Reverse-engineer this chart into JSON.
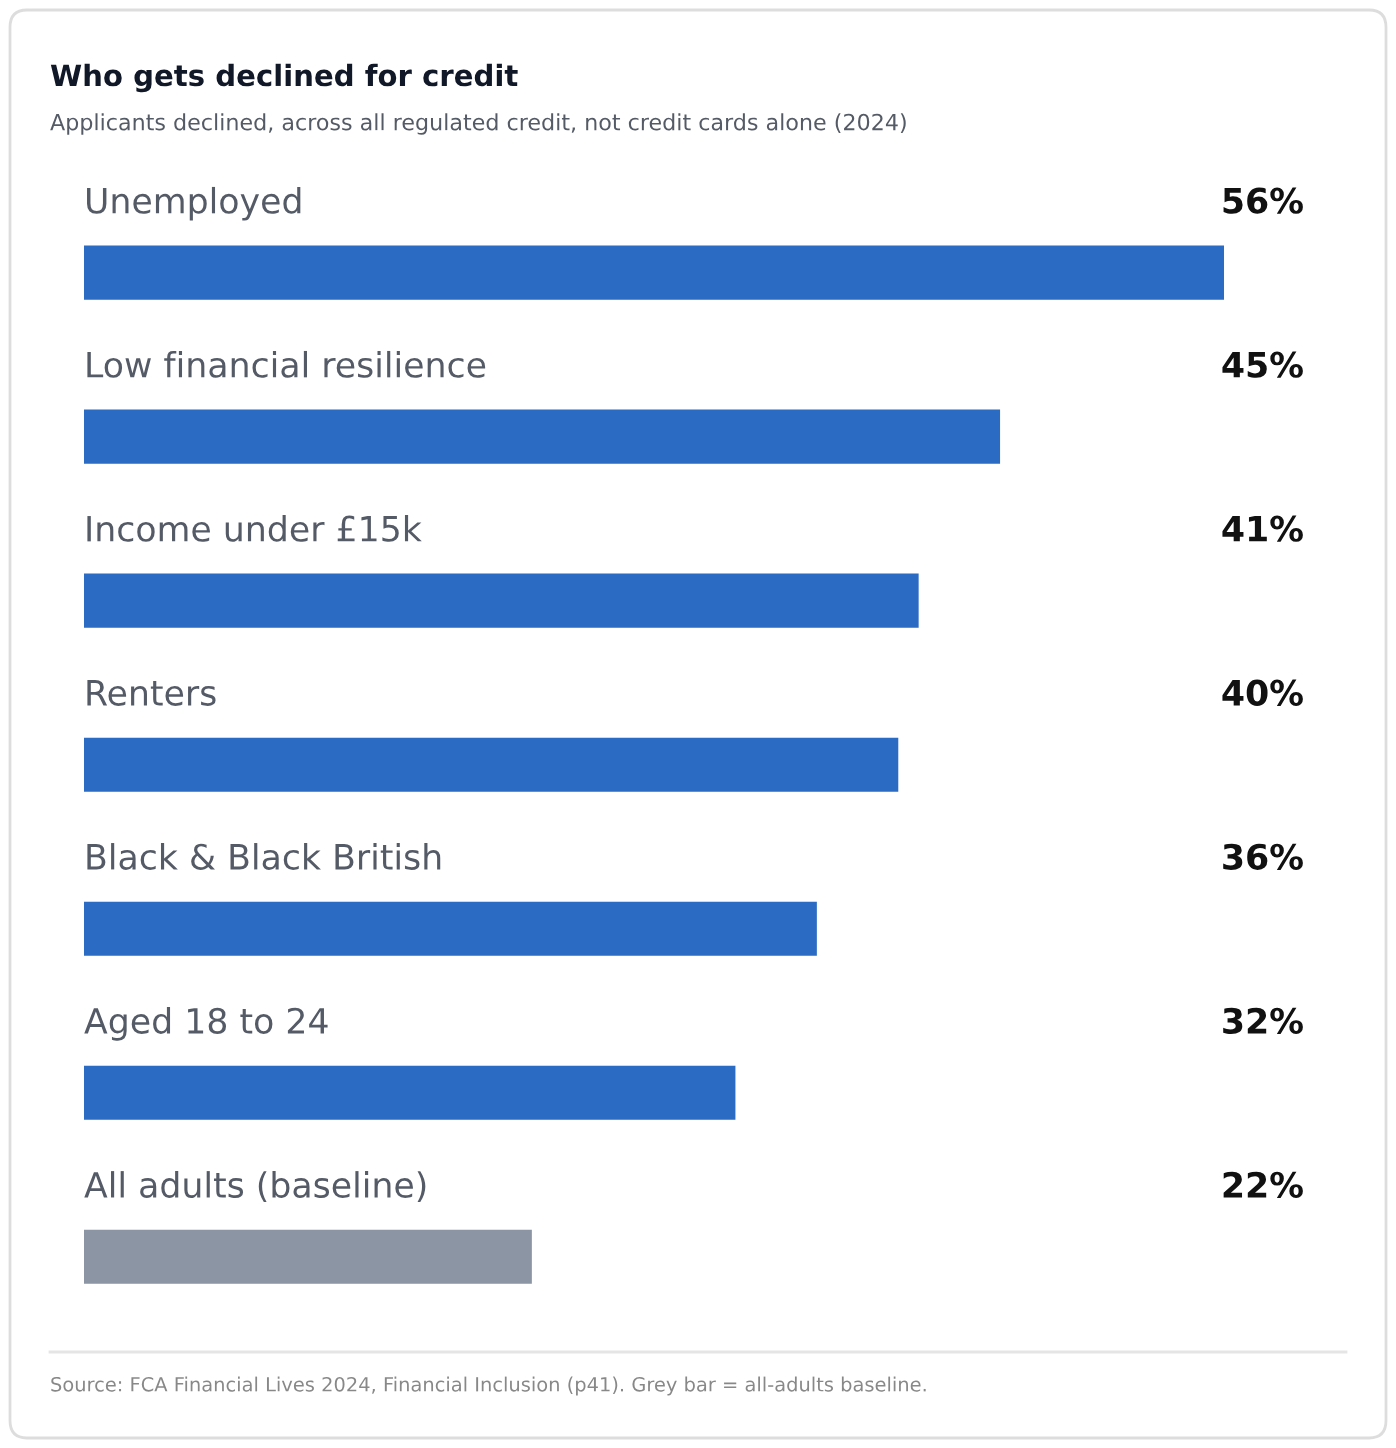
{
  "chart_data": {
    "type": "bar",
    "orientation": "horizontal",
    "title": "Who gets declined for credit",
    "subtitle": "Applicants declined, across all regulated credit, not credit cards alone (2024)",
    "categories": [
      "Unemployed",
      "Low financial resilience",
      "Income under £15k",
      "Renters",
      "Black & Black British",
      "Aged 18 to 24",
      "All adults (baseline)"
    ],
    "values": [
      56,
      45,
      41,
      40,
      36,
      32,
      22
    ],
    "colors": [
      "#2b6bc4",
      "#2b6bc4",
      "#2b6bc4",
      "#2b6bc4",
      "#2b6bc4",
      "#2b6bc4",
      "#8c95a3"
    ],
    "value_labels": [
      "56%",
      "45%",
      "41%",
      "40%",
      "36%",
      "32%",
      "22%"
    ],
    "annotations": [
      "Source: FCA Financial Lives 2024, Financial Inclusion (p41). Grey bar = all-adults baseline."
    ]
  }
}
